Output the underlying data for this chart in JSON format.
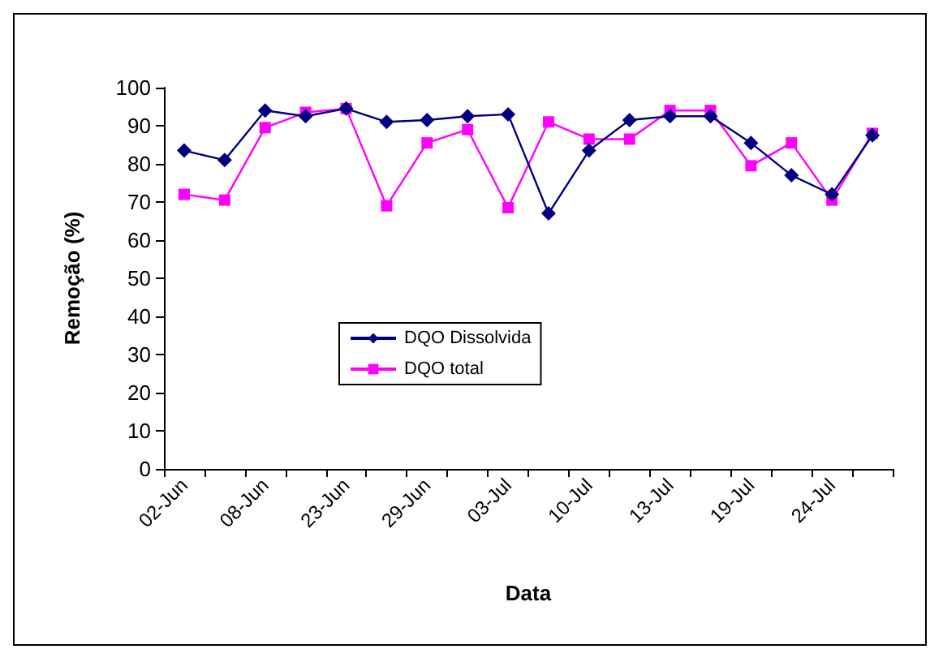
{
  "chart_data": {
    "type": "line",
    "xlabel": "Data",
    "ylabel": "Remoção (%)",
    "categories": [
      "02-Jun",
      null,
      "08-Jun",
      null,
      "23-Jun",
      null,
      "29-Jun",
      null,
      "03-Jul",
      null,
      "10-Jul",
      null,
      "13-Jul",
      null,
      "19-Jul",
      null,
      "24-Jul",
      null
    ],
    "series": [
      {
        "name": "DQO Dissolvida",
        "color": "#000080",
        "marker": "diamond",
        "values": [
          83.5,
          81,
          94,
          92.5,
          94.5,
          91,
          91.5,
          92.5,
          93,
          67,
          83.5,
          91.5,
          92.5,
          92.5,
          85.5,
          77,
          72,
          87.5
        ]
      },
      {
        "name": "DQO total",
        "color": "#ff00ff",
        "marker": "square",
        "values": [
          72,
          70.5,
          89.5,
          93.5,
          94.5,
          69,
          85.5,
          89,
          68.5,
          91,
          86.5,
          86.5,
          94,
          94,
          79.5,
          85.5,
          70.5,
          88
        ]
      }
    ],
    "ylim": [
      0,
      100
    ],
    "yticks": [
      0,
      10,
      20,
      30,
      40,
      50,
      60,
      70,
      80,
      90,
      100
    ],
    "grid": false,
    "legend": "center left",
    "line_style": "solid"
  }
}
